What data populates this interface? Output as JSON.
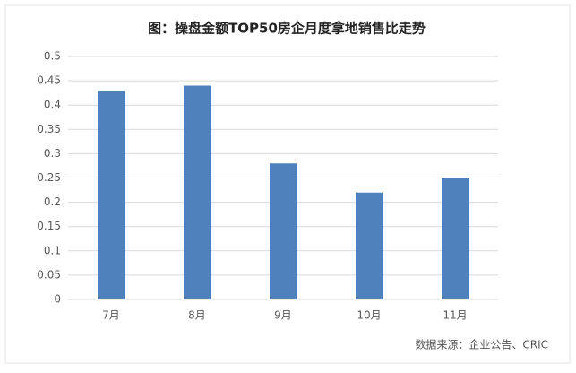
{
  "chart_data": {
    "type": "bar",
    "title": "图：操盘金额TOP50房企月度拿地销售比走势",
    "categories": [
      "7月",
      "8月",
      "9月",
      "10月",
      "11月"
    ],
    "values": [
      0.43,
      0.44,
      0.28,
      0.22,
      0.25
    ],
    "color": "#4f81bd",
    "ylim": [
      0,
      0.5
    ],
    "yticks": [
      0,
      0.05,
      0.1,
      0.15,
      0.2,
      0.25,
      0.3,
      0.35,
      0.4,
      0.45,
      0.5
    ],
    "grid": true,
    "source": "数据来源：企业公告、CRIC"
  }
}
